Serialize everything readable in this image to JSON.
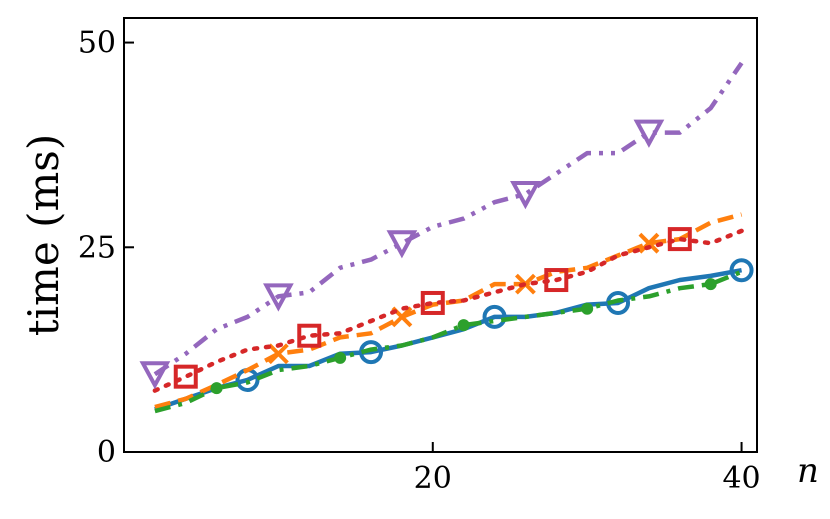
{
  "chart_data": {
    "type": "line",
    "title": "",
    "xlabel": "n",
    "ylabel": "time (ms)",
    "xlim": [
      0,
      41
    ],
    "ylim": [
      0,
      53
    ],
    "xticks": [
      20,
      40
    ],
    "xtick_labels": [
      "20",
      "40"
    ],
    "yticks": [
      0,
      25,
      50
    ],
    "ytick_labels": [
      "0",
      "25",
      "50"
    ],
    "grid": false,
    "legend": "none",
    "series": [
      {
        "color": "#1f77b4",
        "dash": "solid",
        "marker": "circle",
        "marker_size": "large",
        "x": [
          2,
          4,
          6,
          8,
          10,
          12,
          14,
          16,
          18,
          20,
          22,
          24,
          26,
          28,
          30,
          32,
          34,
          36,
          38,
          40
        ],
        "y": [
          5.2,
          6.5,
          7.8,
          8.8,
          10.5,
          10.5,
          12.0,
          12.2,
          13.0,
          14.0,
          15.0,
          16.5,
          16.5,
          17.0,
          18.0,
          18.2,
          20.0,
          21.0,
          21.5,
          22.2
        ],
        "marker_indices": [
          3,
          7,
          11,
          15,
          19
        ]
      },
      {
        "color": "#ff7f0e",
        "dash": "dashed",
        "marker": "x",
        "marker_size": "large",
        "x": [
          2,
          4,
          6,
          8,
          10,
          12,
          14,
          16,
          18,
          20,
          22,
          24,
          26,
          28,
          30,
          32,
          34,
          36,
          38,
          40
        ],
        "y": [
          5.5,
          6.5,
          8.2,
          10.0,
          12.0,
          12.5,
          14.0,
          14.5,
          16.5,
          18.0,
          18.5,
          20.5,
          20.5,
          22.0,
          22.5,
          24.0,
          25.5,
          26.0,
          28.0,
          29.0
        ],
        "marker_indices": [
          4,
          8,
          12,
          16
        ]
      },
      {
        "color": "#2ca02c",
        "dash": "dashdot",
        "marker": "circle",
        "marker_size": "small",
        "x": [
          2,
          4,
          6,
          8,
          10,
          12,
          14,
          16,
          18,
          20,
          22,
          24,
          26,
          28,
          30,
          32,
          34,
          36,
          38,
          40
        ],
        "y": [
          5.0,
          6.0,
          7.8,
          8.5,
          10.0,
          10.5,
          11.5,
          12.5,
          13.0,
          14.0,
          15.5,
          16.0,
          16.5,
          17.0,
          17.5,
          18.5,
          19.0,
          20.0,
          20.5,
          22.0
        ],
        "marker_indices": [
          2,
          6,
          10,
          14,
          18
        ]
      },
      {
        "color": "#d62728",
        "dash": "dotted",
        "marker": "square",
        "marker_size": "large",
        "x": [
          2,
          4,
          6,
          8,
          10,
          12,
          14,
          16,
          18,
          20,
          22,
          24,
          26,
          28,
          30,
          32,
          34,
          36,
          38,
          40
        ],
        "y": [
          7.5,
          9.2,
          11.0,
          12.5,
          13.0,
          14.2,
          14.5,
          16.0,
          17.5,
          18.2,
          18.5,
          19.5,
          20.5,
          21.0,
          22.0,
          24.0,
          25.0,
          26.0,
          25.5,
          27.0
        ],
        "marker_indices": [
          1,
          5,
          9,
          13,
          17
        ]
      },
      {
        "color": "#9467bd",
        "dash": "dashdotdot",
        "marker": "triangle-down",
        "marker_size": "large",
        "x": [
          2,
          4,
          6,
          8,
          10,
          12,
          14,
          16,
          18,
          20,
          22,
          24,
          26,
          28,
          30,
          32,
          34,
          36,
          38,
          40
        ],
        "y": [
          9.5,
          12.0,
          15.0,
          16.5,
          19.0,
          19.5,
          22.5,
          23.5,
          25.5,
          27.5,
          28.5,
          30.5,
          31.5,
          34.0,
          36.5,
          36.5,
          39.0,
          39.0,
          42.0,
          47.5
        ],
        "marker_indices": [
          0,
          4,
          8,
          12,
          16
        ]
      }
    ]
  }
}
